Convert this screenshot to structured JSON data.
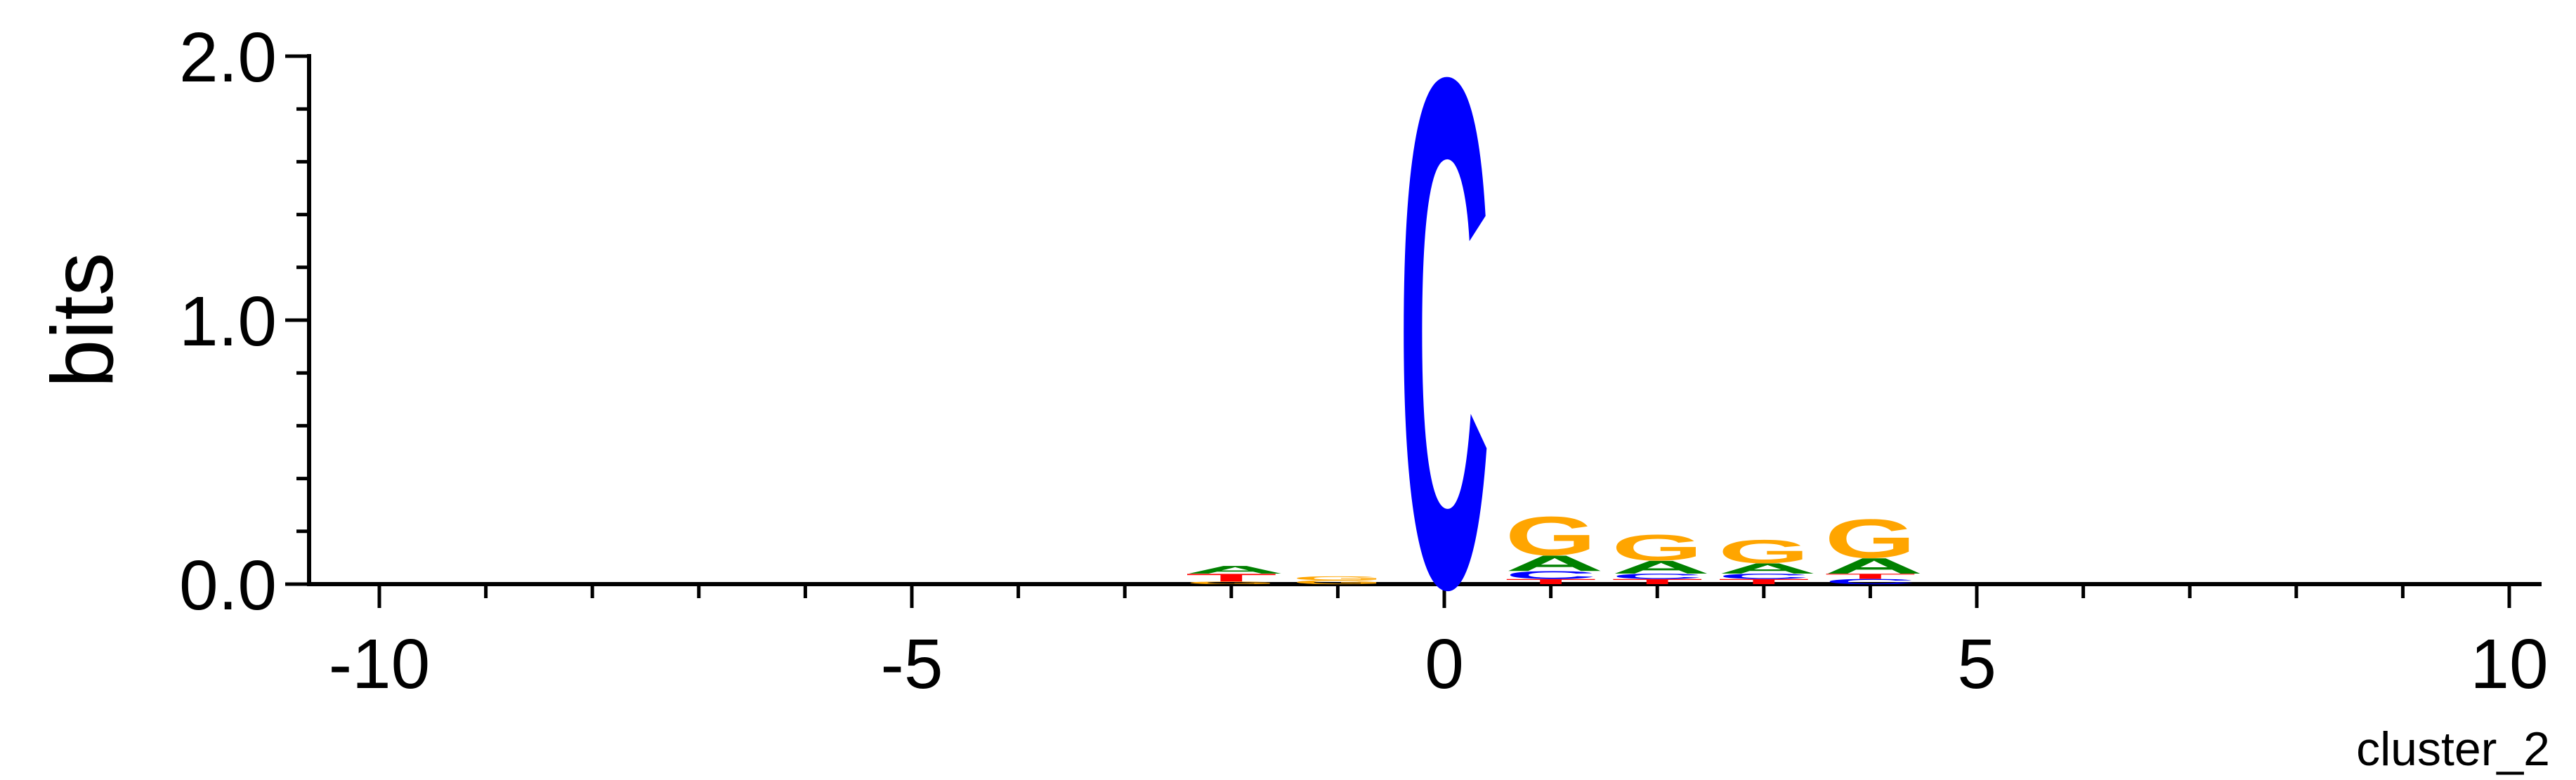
{
  "chart_data": {
    "type": "sequence-logo",
    "ylabel": "bits",
    "ylim": [
      0,
      2.0
    ],
    "y_ticks": [
      {
        "value": 0.0,
        "label": "0.0"
      },
      {
        "value": 1.0,
        "label": "1.0"
      },
      {
        "value": 2.0,
        "label": "2.0"
      }
    ],
    "xlim": [
      -10.5,
      10.5
    ],
    "x_ticks": [
      {
        "value": -10,
        "label": "-10"
      },
      {
        "value": -5,
        "label": "-5"
      },
      {
        "value": 0,
        "label": "0"
      },
      {
        "value": 5,
        "label": "5"
      },
      {
        "value": 10,
        "label": "10"
      }
    ],
    "caption": "cluster_2",
    "base_colors": {
      "A": "#008000",
      "C": "#0000ff",
      "G": "#ffa500",
      "T": "#ff0000"
    },
    "positions": [
      {
        "x": -2,
        "stack": [
          {
            "base": "G",
            "height": 0.01
          },
          {
            "base": "T",
            "height": 0.03
          },
          {
            "base": "A",
            "height": 0.03
          }
        ]
      },
      {
        "x": -1,
        "stack": [
          {
            "base": "G",
            "height": 0.015
          },
          {
            "base": "G",
            "height": 0.015
          }
        ]
      },
      {
        "x": 0,
        "stack": [
          {
            "base": "C",
            "height": 1.97
          }
        ]
      },
      {
        "x": 1,
        "stack": [
          {
            "base": "T",
            "height": 0.02
          },
          {
            "base": "C",
            "height": 0.03
          },
          {
            "base": "A",
            "height": 0.06
          },
          {
            "base": "G",
            "height": 0.15
          }
        ]
      },
      {
        "x": 2,
        "stack": [
          {
            "base": "T",
            "height": 0.02
          },
          {
            "base": "C",
            "height": 0.02
          },
          {
            "base": "A",
            "height": 0.05
          },
          {
            "base": "G",
            "height": 0.1
          }
        ]
      },
      {
        "x": 3,
        "stack": [
          {
            "base": "T",
            "height": 0.02
          },
          {
            "base": "C",
            "height": 0.02
          },
          {
            "base": "A",
            "height": 0.04
          },
          {
            "base": "G",
            "height": 0.09
          }
        ]
      },
      {
        "x": 4,
        "stack": [
          {
            "base": "C",
            "height": 0.02
          },
          {
            "base": "T",
            "height": 0.02
          },
          {
            "base": "A",
            "height": 0.06
          },
          {
            "base": "G",
            "height": 0.15
          }
        ]
      }
    ]
  }
}
